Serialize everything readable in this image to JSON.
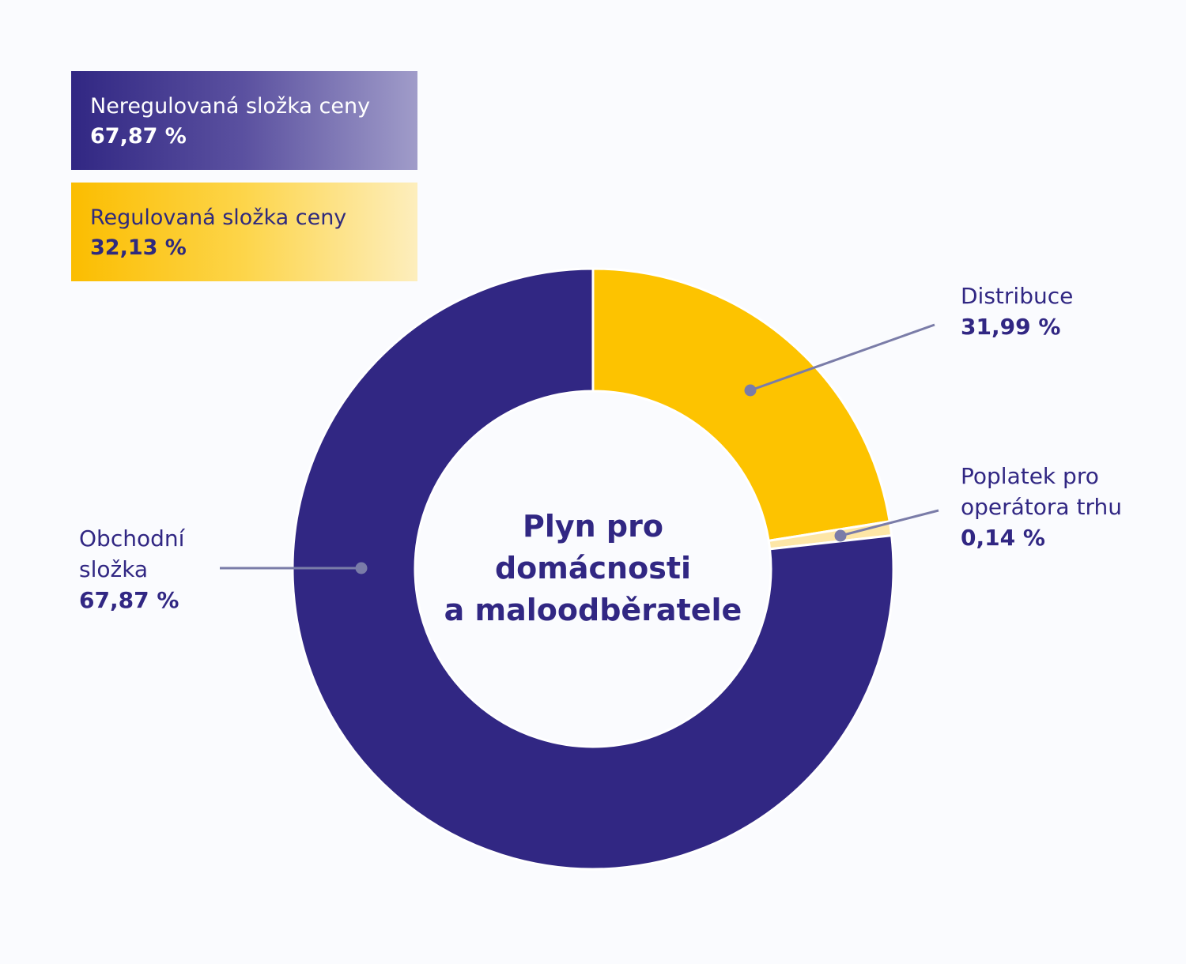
{
  "chart_data": {
    "type": "pie",
    "title": "Plyn pro domácnosti a maloodběratele",
    "title_lines": [
      "Plyn pro",
      "domácnosti",
      "a maloodběratele"
    ],
    "slices": [
      {
        "name": "Distribuce",
        "name_lines": [
          "Distribuce"
        ],
        "value": 31.99,
        "label": "31,99 %",
        "color": "#fdc300"
      },
      {
        "name": "Poplatek pro operátora trhu",
        "name_lines": [
          "Poplatek pro",
          "operátora trhu"
        ],
        "value": 0.14,
        "label": "0,14 %",
        "color": "#fde6a6"
      },
      {
        "name": "Obchodní složka",
        "name_lines": [
          "Obchodní",
          "složka"
        ],
        "value": 67.87,
        "label": "67,87 %",
        "color": "#312783"
      }
    ],
    "legend": [
      {
        "name": "Neregulovaná složka ceny",
        "value": 67.87,
        "label": "67,87 %",
        "color": "#312783"
      },
      {
        "name": "Regulovaná složka ceny",
        "value": 32.13,
        "label": "32,13 %",
        "color": "#fdc300"
      }
    ],
    "legend_placement": "top-left"
  }
}
